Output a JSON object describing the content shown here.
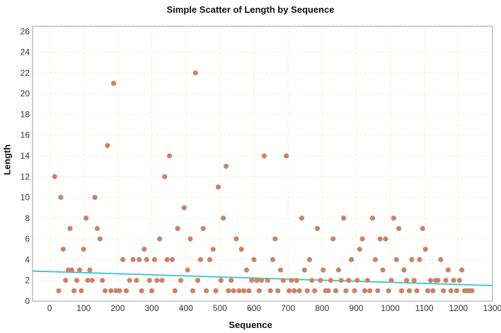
{
  "chart_data": {
    "type": "scatter",
    "title": "Simple Scatter of Length by Sequence",
    "xlabel": "Sequence",
    "ylabel": "Length",
    "xlim": [
      -50,
      1300
    ],
    "ylim": [
      0,
      26.5
    ],
    "x_ticks": [
      "0",
      "100",
      "200",
      "300",
      "400",
      "500",
      "600",
      "700",
      "800",
      "900",
      "1000",
      "1100",
      "1200",
      "1300"
    ],
    "y_ticks": [
      "0",
      "2",
      "4",
      "6",
      "8",
      "10",
      "12",
      "14",
      "16",
      "18",
      "20",
      "22",
      "24",
      "26"
    ],
    "grid": true,
    "legend": "none",
    "colors": {
      "marker_fill": "#e8784e",
      "marker_edge": "#9aa09a",
      "fit_line": "#2ec8c8",
      "grid": "#f0eedc",
      "frame": "#a0a0a0"
    },
    "series": [
      {
        "x": [
          15,
          27,
          33,
          40,
          47,
          55,
          60,
          65,
          72,
          80,
          88,
          93,
          100,
          107,
          112,
          118,
          125,
          133,
          140,
          148,
          155,
          163,
          170,
          180,
          188,
          195,
          205,
          215,
          225,
          235,
          245,
          255,
          263,
          270,
          278,
          285,
          293,
          300,
          308,
          315,
          323,
          330,
          338,
          345,
          352,
          360,
          368,
          376,
          385,
          395,
          405,
          413,
          420,
          428,
          435,
          443,
          451,
          460,
          470,
          480,
          488,
          495,
          503,
          510,
          518,
          525,
          533,
          540,
          548,
          556,
          563,
          570,
          578,
          585,
          593,
          600,
          608,
          615,
          622,
          630,
          640,
          648,
          655,
          662,
          670,
          678,
          686,
          695,
          703,
          710,
          718,
          725,
          733,
          740,
          748,
          756,
          763,
          770,
          778,
          786,
          795,
          803,
          810,
          818,
          825,
          832,
          840,
          848,
          856,
          863,
          870,
          878,
          886,
          895,
          903,
          910,
          918,
          925,
          933,
          940,
          948,
          956,
          963,
          970,
          978,
          986,
          995,
          1003,
          1010,
          1018,
          1025,
          1033,
          1040,
          1048,
          1056,
          1063,
          1070,
          1078,
          1086,
          1095,
          1103,
          1110,
          1118,
          1125,
          1133,
          1140,
          1148,
          1156,
          1163,
          1170,
          1178,
          1186,
          1195,
          1203,
          1210,
          1218,
          1225,
          1233,
          1240
        ],
        "y": [
          12,
          1,
          10,
          5,
          2,
          3,
          7,
          3,
          1,
          2,
          3,
          1,
          5,
          8,
          2,
          3,
          2,
          10,
          7,
          6,
          2,
          1,
          15,
          1,
          21,
          1,
          1,
          4,
          1,
          2,
          4,
          2,
          4,
          1,
          5,
          4,
          2,
          1,
          4,
          2,
          6,
          2,
          12,
          4,
          14,
          4,
          1,
          7,
          2,
          9,
          3,
          6,
          1,
          22,
          2,
          4,
          7,
          1,
          4,
          5,
          1,
          11,
          2,
          8,
          13,
          1,
          2,
          1,
          6,
          1,
          5,
          1,
          3,
          1,
          2,
          4,
          2,
          1,
          2,
          14,
          2,
          1,
          4,
          6,
          1,
          3,
          2,
          14,
          1,
          2,
          1,
          2,
          1,
          8,
          3,
          1,
          4,
          2,
          1,
          7,
          2,
          3,
          1,
          1,
          2,
          6,
          1,
          3,
          2,
          8,
          1,
          2,
          4,
          1,
          2,
          5,
          6,
          1,
          2,
          1,
          8,
          4,
          1,
          6,
          3,
          6,
          1,
          2,
          8,
          4,
          7,
          1,
          3,
          2,
          1,
          4,
          2,
          1,
          4,
          7,
          5,
          1,
          2,
          1,
          2,
          2,
          4,
          1,
          2,
          3,
          1,
          2,
          1,
          2,
          3,
          1,
          1,
          1,
          1
        ],
        "trendline": {
          "x": [
            -50,
            1300
          ],
          "y": [
            2.9,
            1.5
          ]
        }
      }
    ]
  }
}
